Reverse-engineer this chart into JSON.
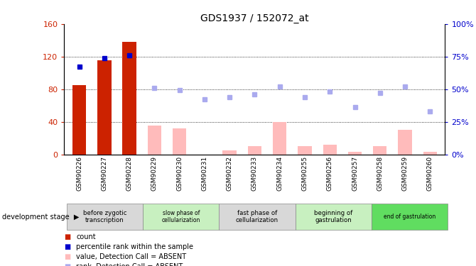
{
  "title": "GDS1937 / 152072_at",
  "samples": [
    "GSM90226",
    "GSM90227",
    "GSM90228",
    "GSM90229",
    "GSM90230",
    "GSM90231",
    "GSM90232",
    "GSM90233",
    "GSM90234",
    "GSM90255",
    "GSM90256",
    "GSM90257",
    "GSM90258",
    "GSM90259",
    "GSM90260"
  ],
  "bar_values": [
    85,
    115,
    138,
    null,
    null,
    null,
    null,
    null,
    null,
    null,
    null,
    null,
    null,
    null,
    null
  ],
  "bar_absent_values": [
    null,
    null,
    null,
    35,
    32,
    null,
    5,
    10,
    40,
    10,
    12,
    3,
    10,
    30,
    3
  ],
  "blue_square_values": [
    67,
    74,
    76,
    null,
    null,
    null,
    null,
    null,
    null,
    null,
    null,
    null,
    null,
    null,
    null
  ],
  "blue_absent_values": [
    null,
    null,
    null,
    51,
    49,
    42,
    44,
    46,
    52,
    44,
    48,
    36,
    47,
    52,
    33
  ],
  "stage_groups": [
    {
      "label": "before zygotic\ntranscription",
      "start": 0,
      "end": 2,
      "color": "#d8d8d8",
      "text_size": 8
    },
    {
      "label": "slow phase of\ncellularization",
      "start": 3,
      "end": 5,
      "color": "#c8f0c0",
      "text_size": 7
    },
    {
      "label": "fast phase of\ncellularization",
      "start": 6,
      "end": 8,
      "color": "#d8d8d8",
      "text_size": 8
    },
    {
      "label": "beginning of\ngastrulation",
      "start": 9,
      "end": 11,
      "color": "#c8f0c0",
      "text_size": 8
    },
    {
      "label": "end of gastrulation",
      "start": 12,
      "end": 14,
      "color": "#60dd60",
      "text_size": 7
    }
  ],
  "ylim_left": [
    0,
    160
  ],
  "ylim_right": [
    0,
    100
  ],
  "yticks_left": [
    0,
    40,
    80,
    120,
    160
  ],
  "yticks_right": [
    0,
    25,
    50,
    75,
    100
  ],
  "ytick_labels_left": [
    "0",
    "40",
    "80",
    "120",
    "160"
  ],
  "ytick_labels_right": [
    "0%",
    "25%",
    "50%",
    "75%",
    "100%"
  ],
  "bar_color": "#cc2200",
  "bar_absent_color": "#ffbbbb",
  "blue_color": "#0000cc",
  "blue_absent_color": "#aaaaee",
  "background_color": "#ffffff",
  "hline_vals": [
    40,
    80,
    120
  ]
}
